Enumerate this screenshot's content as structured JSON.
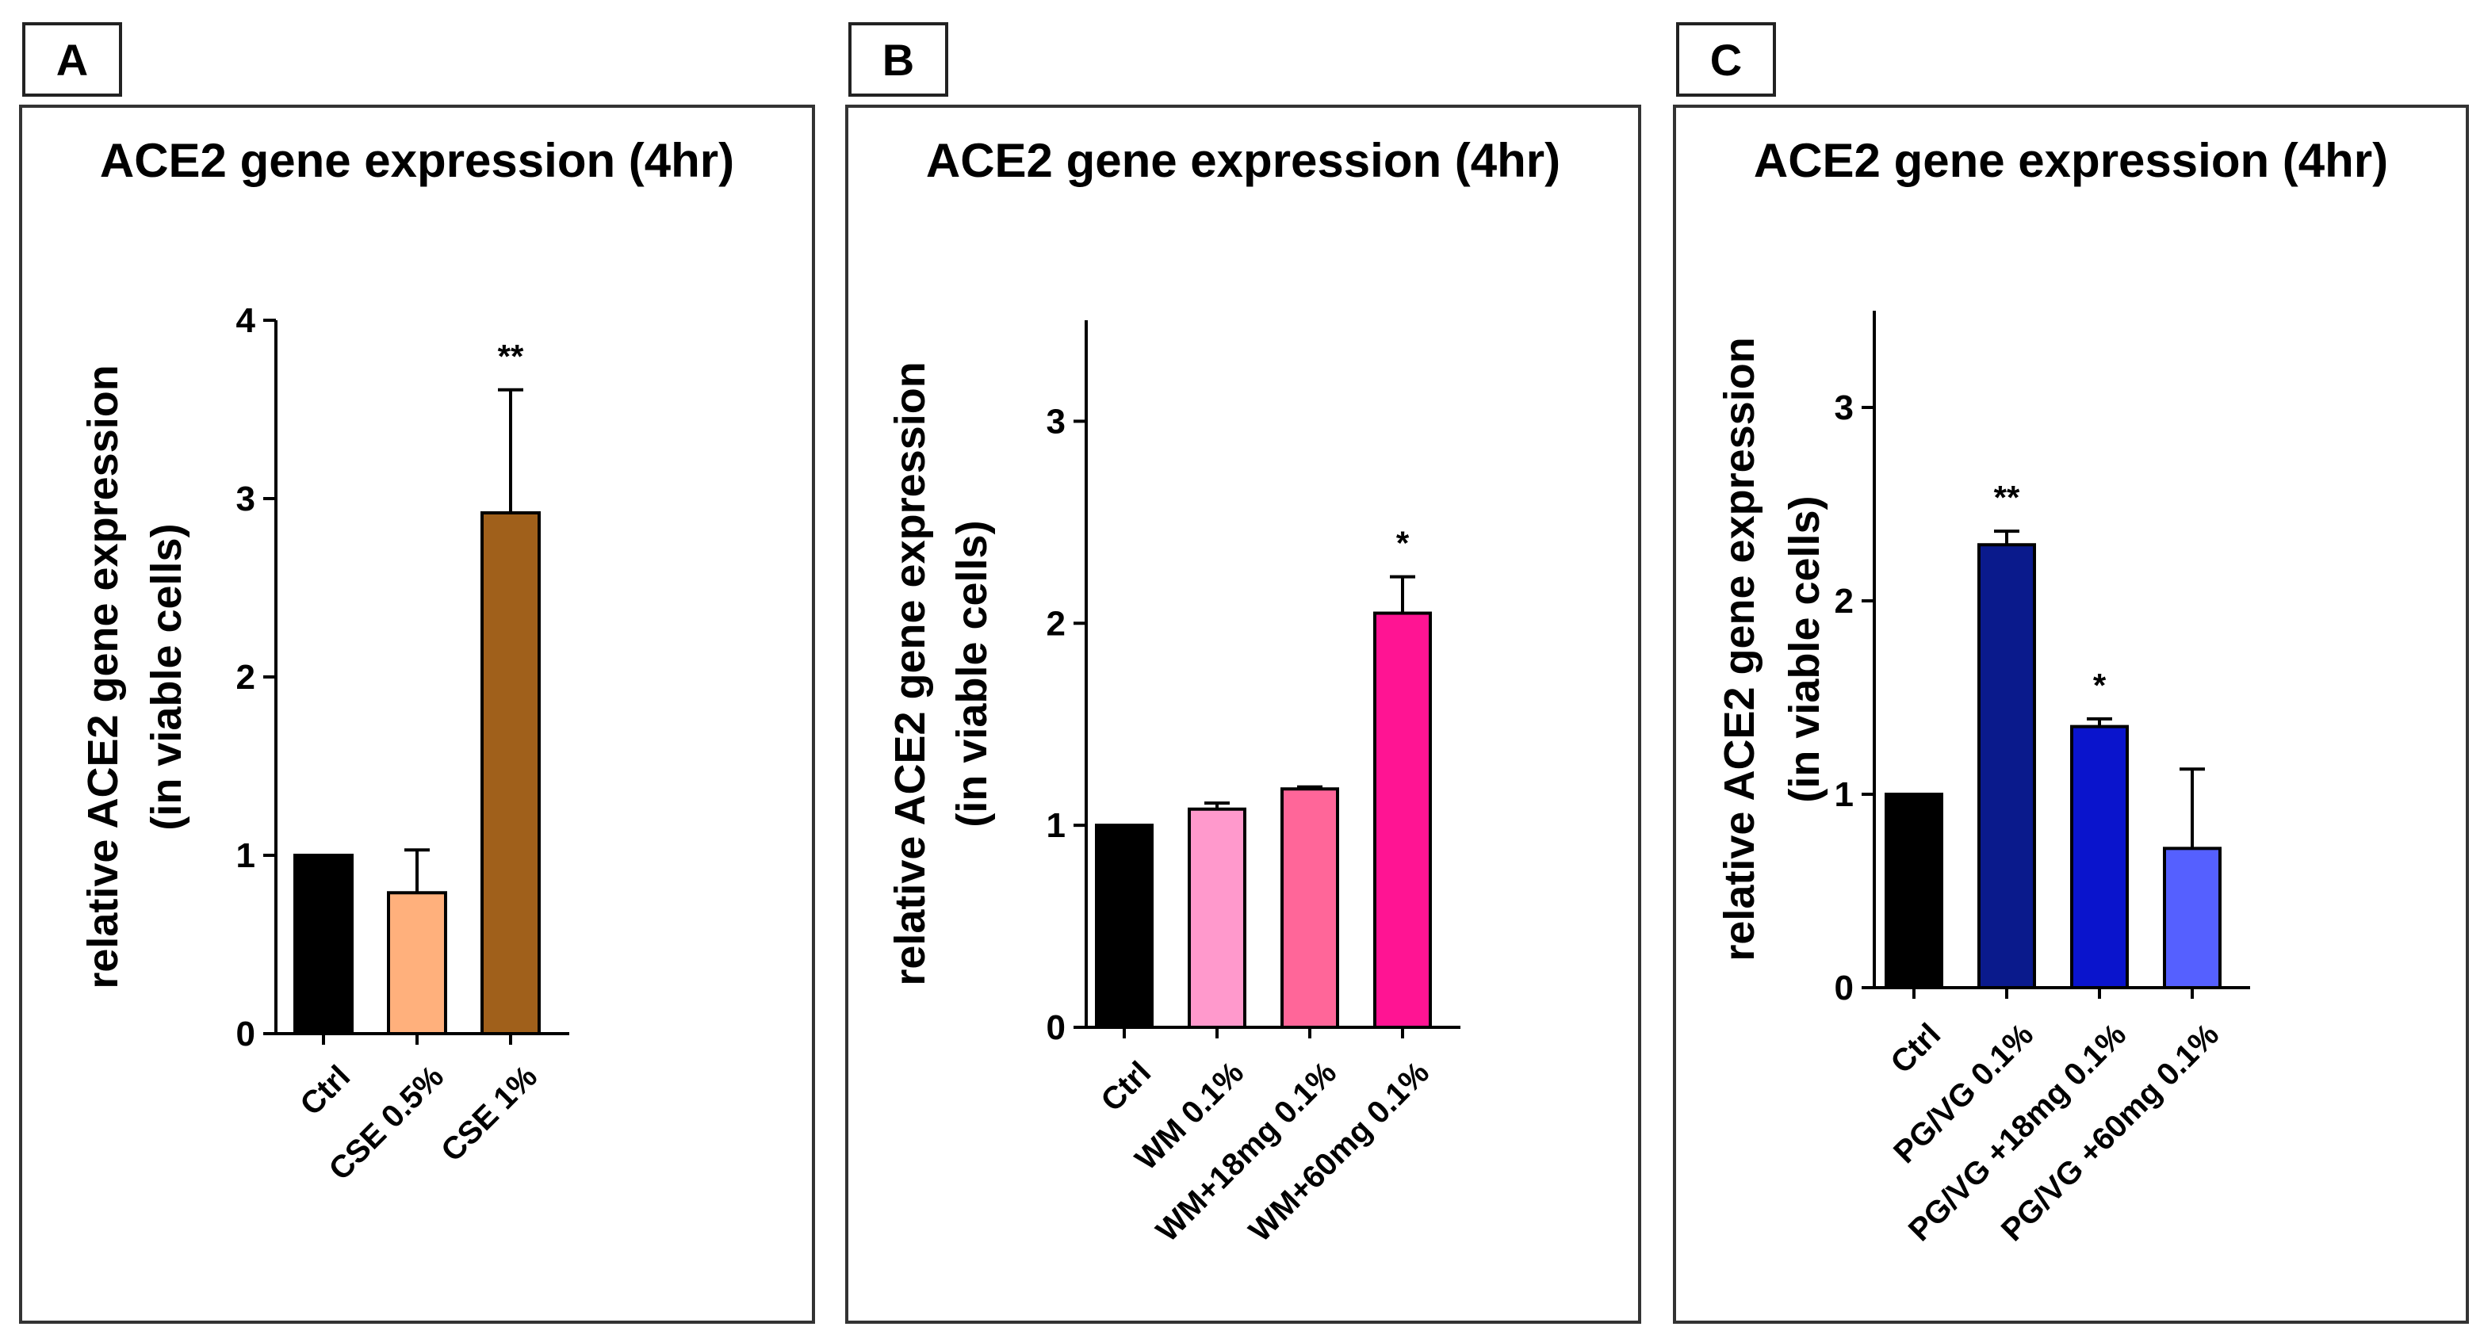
{
  "chart_data": [
    {
      "panel_label": "A",
      "type": "bar",
      "title": "ACE2 gene expression (4hr)",
      "ylabel_line1": "relative ACE2 gene expression",
      "ylabel_line2": "(in viable cells)",
      "ylim": [
        0,
        4
      ],
      "yticks": [
        0,
        1,
        2,
        3,
        4
      ],
      "categories": [
        "Ctrl",
        "CSE 0.5%",
        "CSE 1%"
      ],
      "values": [
        1.0,
        0.79,
        2.92
      ],
      "errors": [
        0,
        0.24,
        0.69
      ],
      "colors": [
        "#000000",
        "#FFB07C",
        "#A0601B"
      ],
      "significance": [
        "",
        "",
        "**"
      ]
    },
    {
      "panel_label": "B",
      "type": "bar",
      "title": "ACE2 gene expression (4hr)",
      "ylabel_line1": "relative ACE2 gene expression",
      "ylabel_line2": "(in viable cells)",
      "ylim": [
        0,
        3.5
      ],
      "yticks": [
        0,
        1,
        2,
        3
      ],
      "categories": [
        "Ctrl",
        "WM 0.1%",
        "WM+18mg 0.1%",
        "WM+60mg 0.1%"
      ],
      "values": [
        1.0,
        1.08,
        1.18,
        2.05
      ],
      "errors": [
        0,
        0.03,
        0.01,
        0.18
      ],
      "colors": [
        "#000000",
        "#FF99CC",
        "#FF6699",
        "#FF1493"
      ],
      "significance": [
        "",
        "",
        "",
        "*"
      ]
    },
    {
      "panel_label": "C",
      "type": "bar",
      "title": "ACE2 gene expression (4hr)",
      "ylabel_line1": "relative ACE2 gene expression",
      "ylabel_line2": "(in viable cells)",
      "ylim": [
        0,
        3.5
      ],
      "yticks": [
        0,
        1,
        2,
        3
      ],
      "categories": [
        "Ctrl",
        "PG/VG 0.1%",
        "PG/VG +18mg 0.1%",
        "PG/VG +60mg 0.1%"
      ],
      "values": [
        1.0,
        2.29,
        1.35,
        0.72
      ],
      "errors": [
        0,
        0.07,
        0.04,
        0.41
      ],
      "colors": [
        "#000000",
        "#0A1A8C",
        "#0A14CC",
        "#5560FF"
      ],
      "significance": [
        "",
        "**",
        "*",
        ""
      ]
    }
  ]
}
